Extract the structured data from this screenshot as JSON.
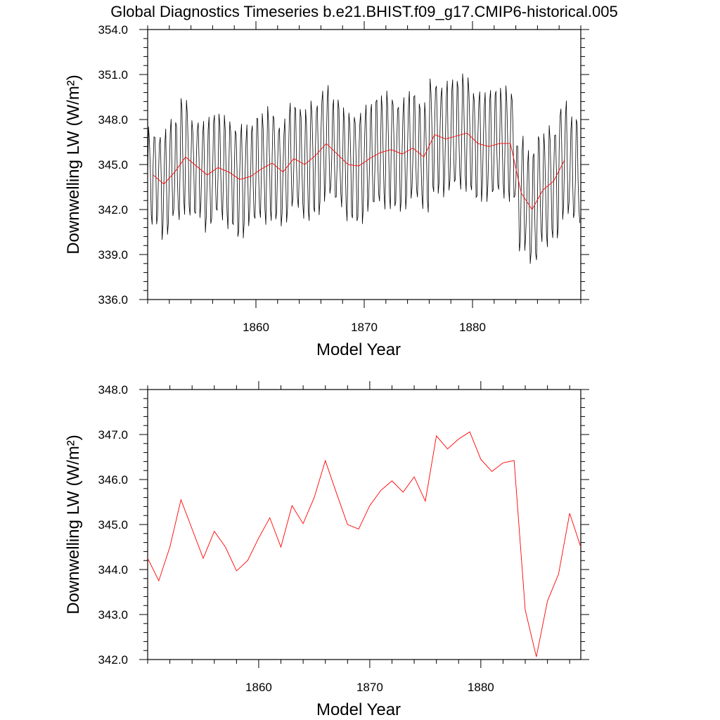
{
  "title": "Global Diagnostics Timeseries b.e21.BHIST.f09_g17.CMIP6-historical.005",
  "colors": {
    "monthly": "#000000",
    "annual": "#ff0000",
    "axis": "#000000"
  },
  "chart_data": [
    {
      "type": "line",
      "xlabel": "Model Year",
      "ylabel": "Downwelling LW (W/m²)",
      "xlim": [
        1850,
        1890
      ],
      "ylim": [
        336.0,
        354.0
      ],
      "xticks": [
        "1860",
        "1870",
        "1880"
      ],
      "xtick_values": [
        1860,
        1870,
        1880
      ],
      "yticks": [
        "336.0",
        "339.0",
        "342.0",
        "345.0",
        "348.0",
        "351.0",
        "354.0"
      ],
      "ytick_values": [
        336,
        339,
        342,
        345,
        348,
        351,
        354
      ],
      "monthly_baseline": [
        344.3,
        343.7,
        344.5,
        345.5,
        344.9,
        344.3,
        344.8,
        344.5,
        344.0,
        344.2,
        344.7,
        345.1,
        344.5,
        345.4,
        345.0,
        345.6,
        346.4,
        345.7,
        345.0,
        344.9,
        345.4,
        345.8,
        346.0,
        345.7,
        346.1,
        345.5,
        347.0,
        346.7,
        346.9,
        347.1,
        346.4,
        346.2,
        346.4,
        346.4,
        343.1,
        342.0,
        343.3,
        343.9,
        345.3,
        344.5
      ],
      "monthly_amplitude": [
        3.2,
        3.6,
        3.4,
        3.9,
        3.3,
        3.8,
        3.5,
        3.7,
        3.9,
        3.4,
        3.6,
        3.8,
        3.5,
        3.6,
        3.7,
        3.9,
        3.8,
        3.6,
        3.7,
        3.8,
        3.6,
        3.7,
        3.9,
        3.8,
        3.7,
        3.6,
        3.9,
        3.8,
        3.7,
        3.9,
        3.8,
        3.7,
        3.6,
        3.8,
        3.9,
        3.9,
        3.7,
        3.8,
        3.9,
        3.6
      ],
      "series": [
        {
          "x": [
            1850.5,
            1851.5,
            1852.5,
            1853.5,
            1854.5,
            1855.5,
            1856.5,
            1857.5,
            1858.5,
            1859.5,
            1860.5,
            1861.5,
            1862.5,
            1863.5,
            1864.5,
            1865.5,
            1866.5,
            1867.5,
            1868.5,
            1869.5,
            1870.5,
            1871.5,
            1872.5,
            1873.5,
            1874.5,
            1875.5,
            1876.5,
            1877.5,
            1878.5,
            1879.5,
            1880.5,
            1881.5,
            1882.5,
            1883.5,
            1884.5,
            1885.5,
            1886.5,
            1887.5,
            1888.5
          ],
          "values": [
            344.3,
            343.7,
            344.5,
            345.5,
            344.9,
            344.3,
            344.8,
            344.5,
            344.0,
            344.2,
            344.7,
            345.1,
            344.5,
            345.4,
            345.0,
            345.6,
            346.4,
            345.7,
            345.0,
            344.9,
            345.4,
            345.8,
            346.0,
            345.7,
            346.1,
            345.5,
            347.0,
            346.7,
            346.9,
            347.1,
            346.4,
            346.2,
            346.4,
            346.4,
            343.1,
            342.0,
            343.3,
            343.9,
            345.3
          ]
        }
      ]
    },
    {
      "type": "line",
      "xlabel": "Model Year",
      "ylabel": "Downwelling LW (W/m²)",
      "xlim": [
        1850,
        1889
      ],
      "ylim": [
        342.0,
        348.0
      ],
      "xticks": [
        "1860",
        "1870",
        "1880"
      ],
      "xtick_values": [
        1860,
        1870,
        1880
      ],
      "yticks": [
        "342.0",
        "343.0",
        "344.0",
        "345.0",
        "346.0",
        "347.0",
        "348.0"
      ],
      "ytick_values": [
        342,
        343,
        344,
        345,
        346,
        347,
        348
      ],
      "series": [
        {
          "x": [
            1850,
            1851,
            1852,
            1853,
            1854,
            1855,
            1856,
            1857,
            1858,
            1859,
            1860,
            1861,
            1862,
            1863,
            1864,
            1865,
            1866,
            1867,
            1868,
            1869,
            1870,
            1871,
            1872,
            1873,
            1874,
            1875,
            1876,
            1877,
            1878,
            1879,
            1880,
            1881,
            1882,
            1883,
            1884,
            1885,
            1886,
            1887,
            1888,
            1889
          ],
          "values": [
            344.25,
            343.75,
            344.5,
            345.55,
            344.9,
            344.25,
            344.85,
            344.5,
            343.97,
            344.2,
            344.7,
            345.15,
            344.5,
            345.42,
            345.02,
            345.6,
            346.42,
            345.7,
            345.0,
            344.9,
            345.42,
            345.76,
            345.97,
            345.72,
            346.06,
            345.52,
            346.97,
            346.68,
            346.9,
            347.06,
            346.45,
            346.18,
            346.37,
            346.42,
            343.1,
            342.06,
            343.3,
            343.9,
            345.25,
            344.5
          ]
        }
      ]
    }
  ]
}
